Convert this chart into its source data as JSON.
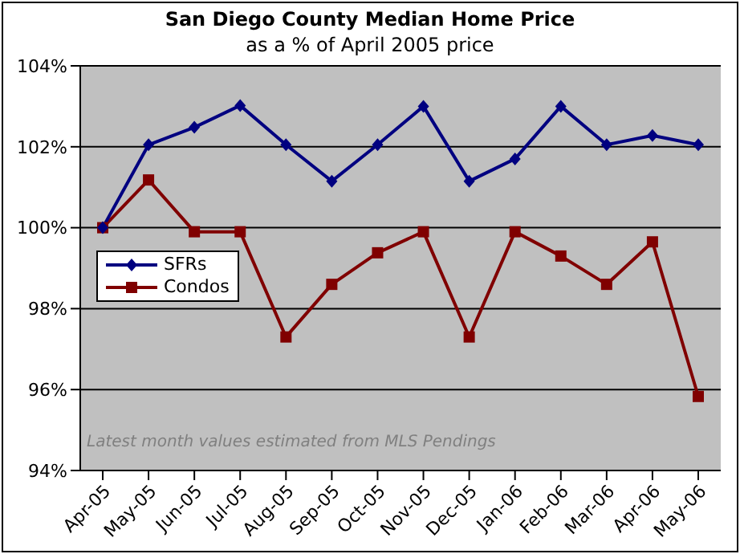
{
  "chart_data": {
    "type": "line",
    "title": "San Diego County Median Home Price",
    "subtitle": "as a % of April 2005 price",
    "categories": [
      "Apr-05",
      "May-05",
      "Jun-05",
      "Jul-05",
      "Aug-05",
      "Sep-05",
      "Oct-05",
      "Nov-05",
      "Dec-05",
      "Jan-06",
      "Feb-06",
      "Mar-06",
      "Apr-06",
      "May-06"
    ],
    "series": [
      {
        "name": "SFRs",
        "color": "#000080",
        "marker": "diamond",
        "values": [
          100,
          102.05,
          102.48,
          103.02,
          102.05,
          101.15,
          102.05,
          103.0,
          101.15,
          101.7,
          103.0,
          102.05,
          102.28,
          102.05
        ]
      },
      {
        "name": "Condos",
        "color": "#800000",
        "marker": "square",
        "values": [
          100,
          101.18,
          99.9,
          99.9,
          97.3,
          98.6,
          99.38,
          99.9,
          97.3,
          99.9,
          99.3,
          98.6,
          99.65,
          95.83
        ]
      }
    ],
    "ylim": [
      94,
      104
    ],
    "yticks": [
      {
        "value": 94,
        "label": "94%"
      },
      {
        "value": 96,
        "label": "96%"
      },
      {
        "value": 98,
        "label": "98%"
      },
      {
        "value": 100,
        "label": "100%"
      },
      {
        "value": 102,
        "label": "102%"
      },
      {
        "value": 104,
        "label": "104%"
      }
    ],
    "grid": "y",
    "legend": "left",
    "annotations": [
      "Latest month values estimated from MLS Pendings"
    ]
  }
}
